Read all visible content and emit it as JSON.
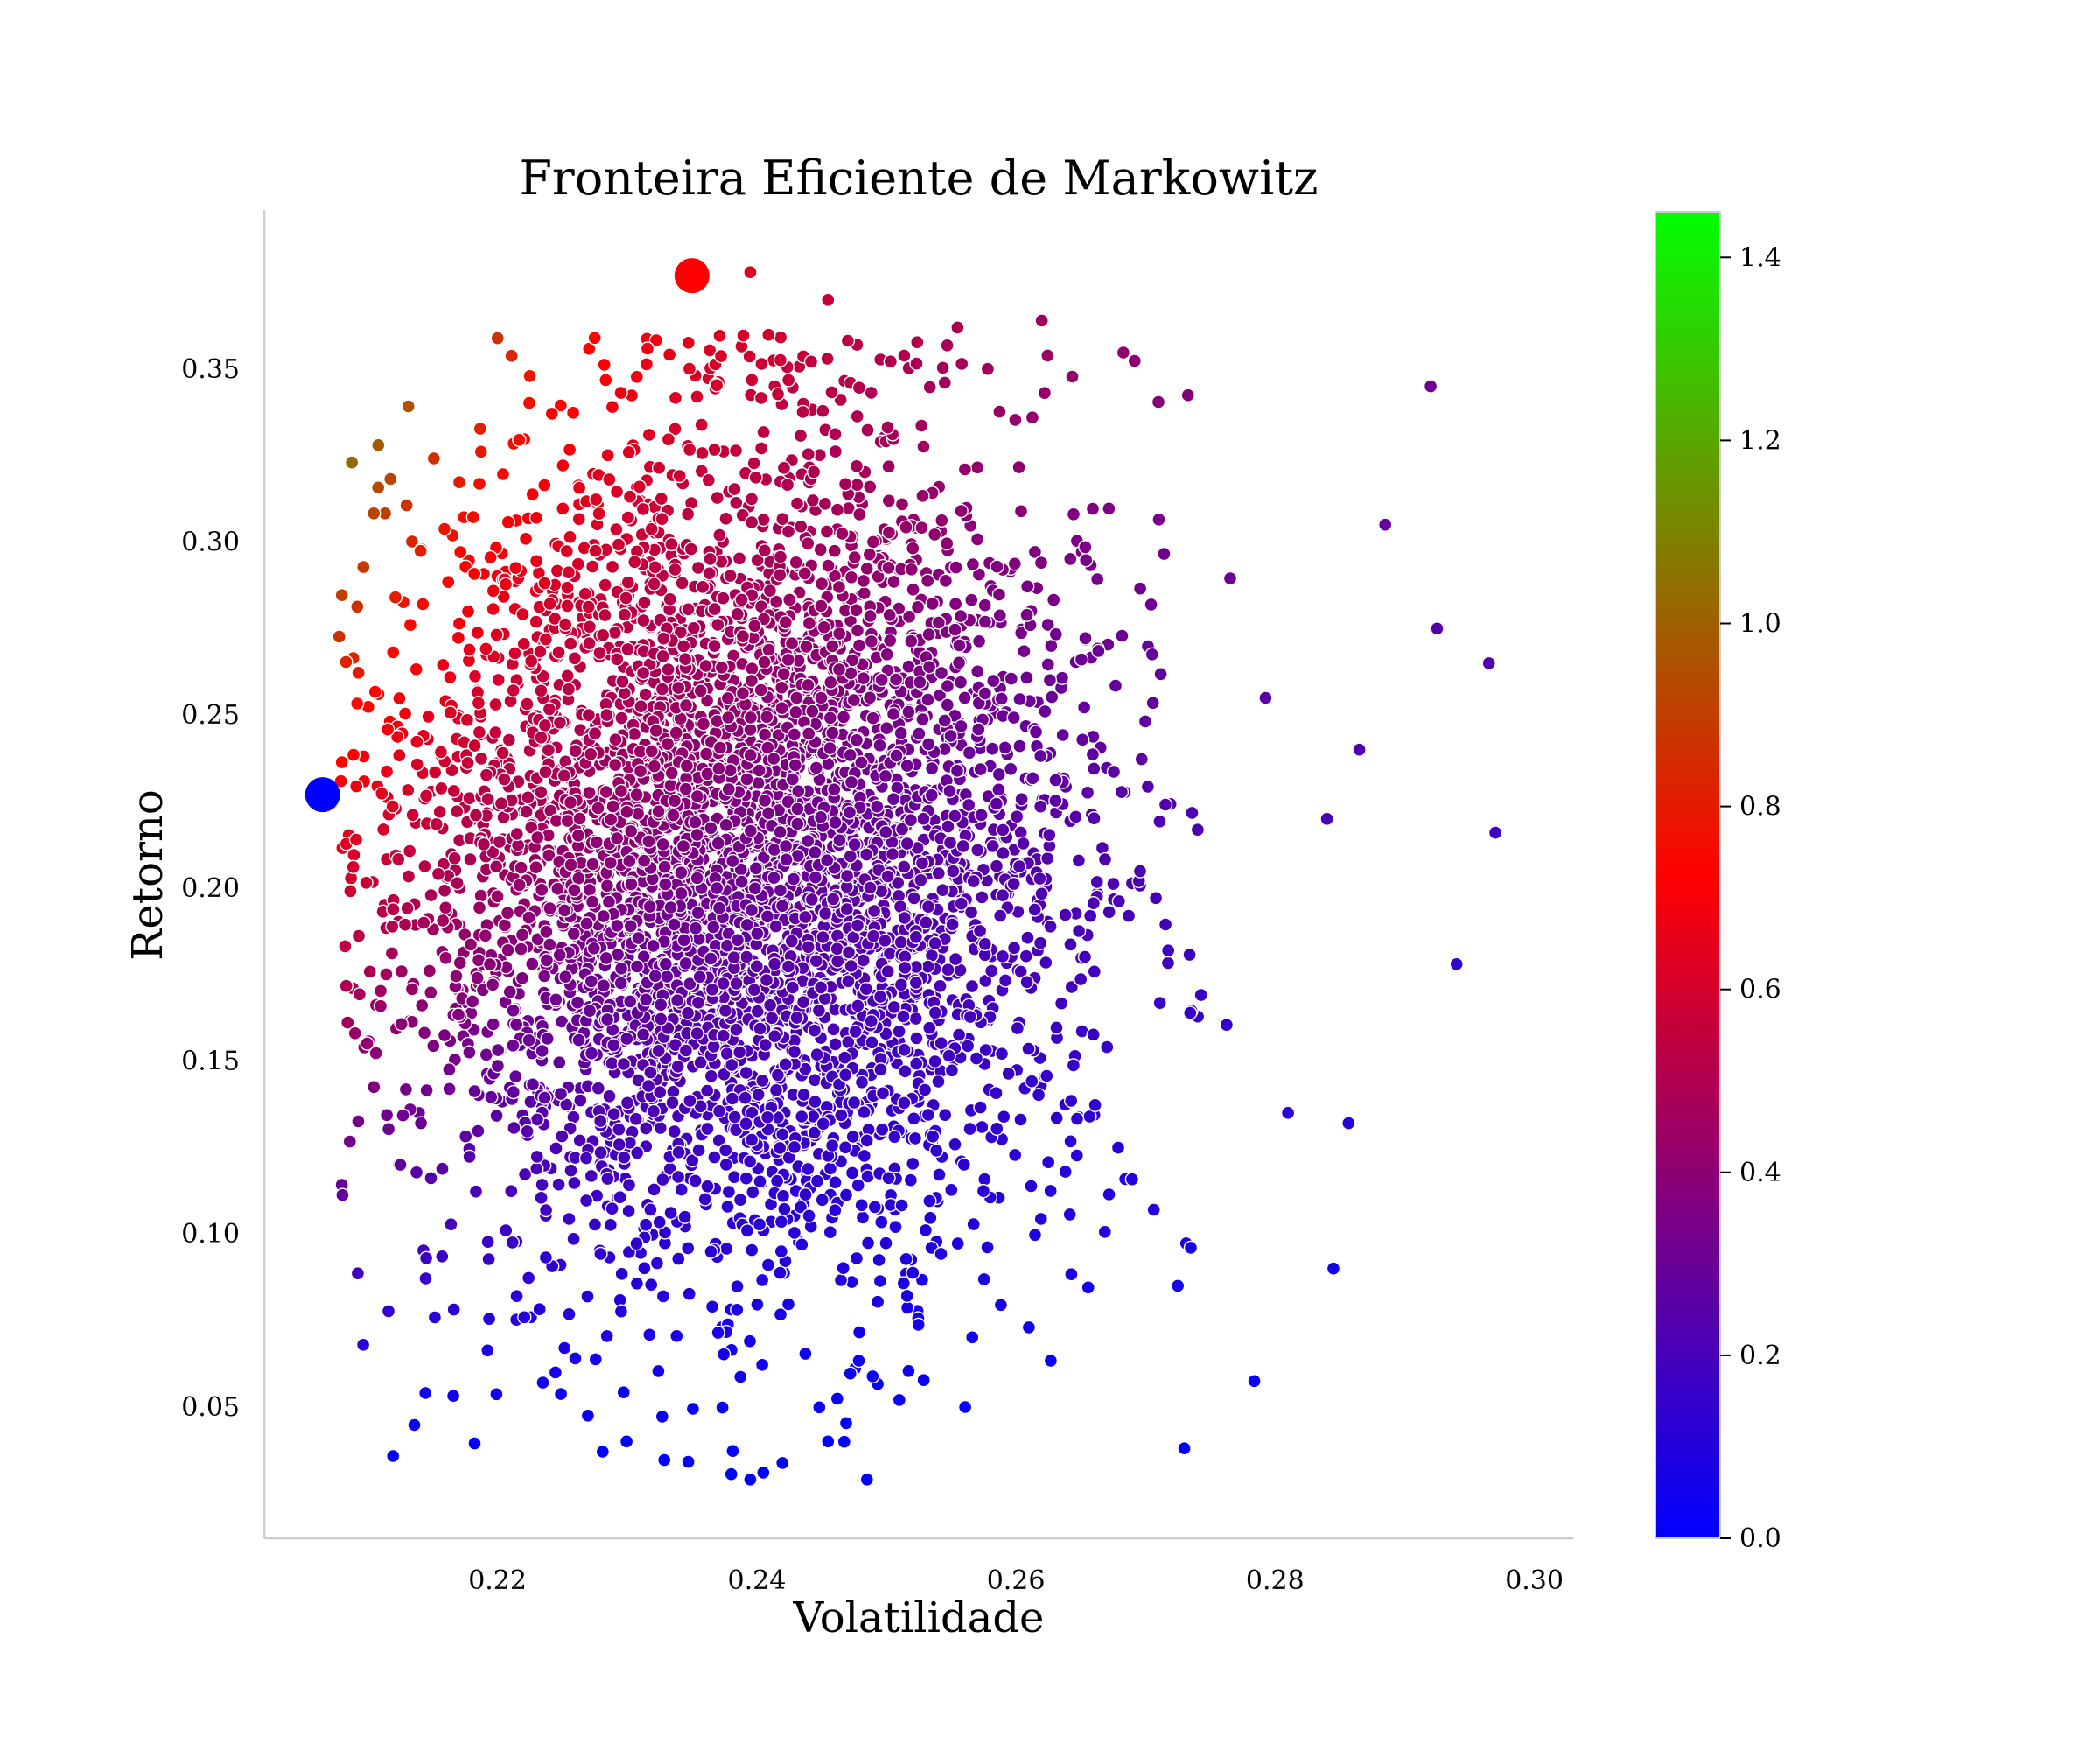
{
  "chart_data": {
    "type": "scatter",
    "title": "Fronteira Eficiente de Markowitz",
    "xlabel": "Volatilidade",
    "ylabel": "Retorno",
    "xlim": [
      0.202,
      0.303
    ],
    "ylim": [
      0.012,
      0.396
    ],
    "xticks": [
      0.22,
      0.24,
      0.26,
      0.28,
      0.3
    ],
    "xtick_labels": [
      "0.22",
      "0.24",
      "0.26",
      "0.28",
      "0.30"
    ],
    "yticks": [
      0.05,
      0.1,
      0.15,
      0.2,
      0.25,
      0.3,
      0.35
    ],
    "ytick_labels": [
      "0.05",
      "0.10",
      "0.15",
      "0.20",
      "0.25",
      "0.30",
      "0.35"
    ],
    "grid": false,
    "colorbar": {
      "range": [
        0.0,
        1.45
      ],
      "ticks": [
        0.0,
        0.2,
        0.4,
        0.6,
        0.8,
        1.0,
        1.2,
        1.4
      ],
      "tick_labels": [
        "0.0",
        "0.2",
        "0.4",
        "0.6",
        "0.8",
        "1.0",
        "1.2",
        "1.4"
      ],
      "colormap": [
        "#0000ff",
        "#ff0000",
        "#00ff00"
      ],
      "colormap_note": "brg"
    },
    "marker_edge_color": "#ffffff",
    "point_count_estimate": 5000,
    "distribution": {
      "volatility_mean": 0.239,
      "volatility_sd": 0.0125,
      "return_mean": 0.21,
      "return_sd": 0.058
    },
    "outliers": [
      {
        "x": 0.2395,
        "y": 0.378
      },
      {
        "x": 0.2455,
        "y": 0.37
      },
      {
        "x": 0.2555,
        "y": 0.362
      },
      {
        "x": 0.262,
        "y": 0.364
      },
      {
        "x": 0.292,
        "y": 0.345
      },
      {
        "x": 0.2925,
        "y": 0.275
      },
      {
        "x": 0.2965,
        "y": 0.265
      },
      {
        "x": 0.297,
        "y": 0.216
      },
      {
        "x": 0.294,
        "y": 0.178
      },
      {
        "x": 0.2885,
        "y": 0.305
      },
      {
        "x": 0.2865,
        "y": 0.24
      },
      {
        "x": 0.284,
        "y": 0.22
      },
      {
        "x": 0.281,
        "y": 0.135
      },
      {
        "x": 0.2845,
        "y": 0.09
      },
      {
        "x": 0.273,
        "y": 0.038
      },
      {
        "x": 0.2485,
        "y": 0.029
      },
      {
        "x": 0.2395,
        "y": 0.029
      },
      {
        "x": 0.2405,
        "y": 0.031
      },
      {
        "x": 0.2455,
        "y": 0.04
      },
      {
        "x": 0.2275,
        "y": 0.359
      },
      {
        "x": 0.2225,
        "y": 0.348
      },
      {
        "x": 0.209,
        "y": 0.158
      },
      {
        "x": 0.2125,
        "y": 0.12
      },
      {
        "x": 0.2145,
        "y": 0.093
      },
      {
        "x": 0.2235,
        "y": 0.057
      },
      {
        "x": 0.226,
        "y": 0.064
      },
      {
        "x": 0.2735,
        "y": 0.096
      },
      {
        "x": 0.2725,
        "y": 0.085
      },
      {
        "x": 0.261,
        "y": 0.073
      },
      {
        "x": 0.251,
        "y": 0.052
      }
    ],
    "highlighted_points": [
      {
        "x": 0.235,
        "y": 0.377,
        "color": "#ff0000"
      },
      {
        "x": 0.2065,
        "y": 0.227,
        "color": "#0000ff"
      }
    ]
  }
}
